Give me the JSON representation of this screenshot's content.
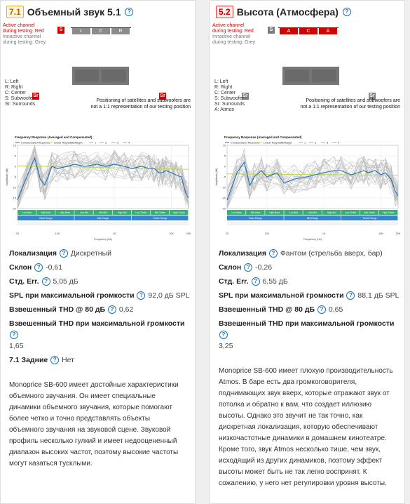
{
  "left": {
    "badge": "7.1",
    "title": "Объемный звук 5.1",
    "active_note_1": "Active channel",
    "active_note_2": "during testing: Red",
    "inactive_note_1": "Innactive channel",
    "inactive_note_2": "during testing: Grey",
    "sub_label": "S",
    "bar_labels": [
      "L",
      "C",
      "R"
    ],
    "surround_label": "Sr",
    "legend": [
      "L: Left",
      "R: Right",
      "C: Center",
      "S: Subwoofer",
      "Sr: Surrounds"
    ],
    "positioning_1": "Positioning of satellites and subwoofers are",
    "positioning_2": "not a 1:1 representation of our testing position",
    "chart_data": {
      "type": "line",
      "title": "Frequency Response (Averaged and Compensated)",
      "legend": [
        "Compensated Response",
        "Linear Regression",
        "Target",
        "1",
        "2",
        "3",
        "4"
      ],
      "xlabel": "Frequency (Hz)",
      "ylabel": "Amplitude (dB)",
      "x_ticks": [
        "20",
        "100",
        "1K",
        "10K",
        "20K"
      ],
      "y_ticks": [
        "10",
        "5",
        "0",
        "-5",
        "-10",
        "-15",
        "-20"
      ],
      "ylim": [
        -20,
        10
      ],
      "bands_top": [
        "Low-Bass",
        "Mid-Bass",
        "High-Bass",
        "Low-Mid",
        "Mid-Mid",
        "High-Mid",
        "Low-Treble",
        "Mid-Treble",
        "High-Treble"
      ],
      "bands_bottom": [
        "Bass Range",
        "Mid-Range",
        "Treble Range"
      ],
      "series": [
        {
          "name": "Compensated Response",
          "color": "#1f6fb7",
          "x": [
            20,
            30,
            40,
            50,
            60,
            80,
            100,
            150,
            200,
            300,
            500,
            700,
            1000,
            1500,
            2000,
            3000,
            4000,
            5000,
            6000,
            7000,
            8000,
            10000,
            12000,
            15000,
            18000,
            20000
          ],
          "y": [
            -16,
            -4,
            4,
            -6,
            -9,
            0,
            -1,
            0,
            1,
            0,
            1,
            0,
            1,
            0,
            -1,
            0,
            -1,
            -1,
            -3,
            -3,
            -2,
            -3,
            -4,
            -5,
            -13,
            -15
          ]
        },
        {
          "name": "Linear Regression",
          "color": "#b8d94a",
          "x": [
            20,
            20000
          ],
          "y": [
            0.3,
            -1.4
          ]
        }
      ]
    },
    "stats": [
      {
        "label": "Локализация",
        "value": "Дискретный"
      },
      {
        "label": "Склон",
        "value": "-0,61"
      },
      {
        "label": "Стд. Err.",
        "value": "5,05 дБ"
      },
      {
        "label": "SPL при максимальной громкости",
        "value": "92,0 дБ SPL"
      },
      {
        "label": "Взвешенный THD @ 80 дБ",
        "value": "0,62"
      },
      {
        "label": "Взвешенный THD при максимальной громкости",
        "value": "1,65"
      },
      {
        "label": "7.1 Задние",
        "value": "Нет"
      }
    ],
    "description": "Monoprice SB-600 имеет достойные характеристики объемного звучания. Он имеет специальные динамики объемного звучания, которые помогают более четко и точно представлять объекты объемного звучания на звуковой сцене. Звуковой профиль несколько гулкий и имеет недооцененный диапазон высоких частот, поэтому высокие частоты могут казаться тусклыми."
  },
  "right": {
    "badge": "5.2",
    "title": "Высота (Атмосфера)",
    "active_note_1": "Active channel",
    "active_note_2": "during testing: Red",
    "inactive_note_1": "Innactive channel",
    "inactive_note_2": "during testing: Grey",
    "sub_label": "S",
    "bar_labels": [
      "A",
      "C",
      "A"
    ],
    "surround_label": "Sr",
    "legend": [
      "L: Left",
      "R: Right",
      "C: Center",
      "S: Subwoofer",
      "Sr: Surrounds",
      "A: Atmos"
    ],
    "positioning_1": "Positioning of satellites and subwoofers are",
    "positioning_2": "not a 1:1 representation of our testing position",
    "chart_data": {
      "type": "line",
      "title": "Frequency Response (Averaged and Compensated)",
      "legend": [
        "Compensated Response",
        "Linear Regression",
        "Target",
        "1",
        "2",
        "3",
        "4"
      ],
      "xlabel": "Frequency (Hz)",
      "ylabel": "Amplitude (dB)",
      "x_ticks": [
        "20",
        "100",
        "1K",
        "10K",
        "20K"
      ],
      "y_ticks": [
        "10",
        "5",
        "0",
        "-5",
        "-10",
        "-15",
        "-20"
      ],
      "ylim": [
        -20,
        10
      ],
      "bands_top": [
        "Low-Bass",
        "Mid-Bass",
        "High-Bass",
        "Low-Mid",
        "Mid-Mid",
        "High-Mid",
        "Low-Treble",
        "Mid-Treble",
        "High-Treble"
      ],
      "bands_bottom": [
        "Bass Range",
        "Mid-Range",
        "Treble Range"
      ],
      "series": [
        {
          "name": "Compensated Response",
          "color": "#1f6fb7",
          "x": [
            20,
            30,
            40,
            50,
            60,
            80,
            100,
            150,
            200,
            300,
            500,
            700,
            1000,
            1500,
            2000,
            3000,
            4000,
            5000,
            6000,
            8000,
            10000,
            12000,
            15000,
            18000,
            20000
          ],
          "y": [
            -16,
            -3,
            2,
            -9,
            -5,
            -2,
            -5,
            -3,
            -8,
            -6,
            -5,
            -4,
            -3,
            -2,
            -2,
            -4,
            -3,
            -2,
            -3,
            -2,
            -4,
            -3,
            -6,
            -12,
            -14
          ]
        },
        {
          "name": "Linear Regression",
          "color": "#b8d94a",
          "x": [
            20,
            20000
          ],
          "y": [
            -3.6,
            -4.2
          ]
        }
      ]
    },
    "stats": [
      {
        "label": "Локализация",
        "value": "Фантом (стрельба вверх, бар)"
      },
      {
        "label": "Склон",
        "value": "-0,26"
      },
      {
        "label": "Стд. Err.",
        "value": "6,55 дБ"
      },
      {
        "label": "SPL при максимальной громкости",
        "value": "88,1 дБ SPL"
      },
      {
        "label": "Взвешенный THD @ 80 дБ",
        "value": "0,65"
      },
      {
        "label": "Взвешенный THD при максимальной громкости",
        "value": "3,25"
      }
    ],
    "description": "Monoprice SB-600 имеет плохую производительность Atmos. В баре есть два громкоговорителя, поднимающих звук вверх, которые отражают звук от потолка и обратно к вам, что создает иллюзию высоты. Однако это звучит не так точно, как дискретная локализация, которую обеспечивают низкочастотные динамики в домашнем кинотеатре. Кроме того, звук Atmos несколько тише, чем звук, исходящий из других динамиков, поэтому эффект высоты может быть не так легко воспринят. К сожалению, у него нет регулировки уровня высоты."
  }
}
